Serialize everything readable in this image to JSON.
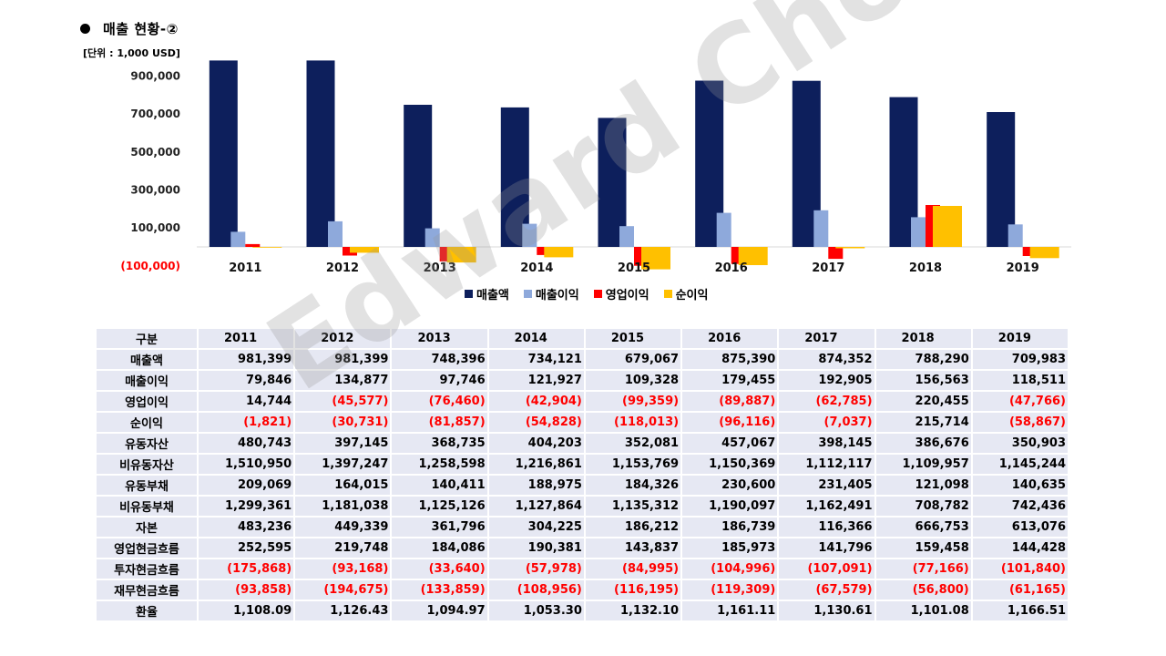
{
  "header": {
    "title": "매출 현황-②",
    "unit": "[단위 : 1,000 USD]"
  },
  "watermark": "Edward Choi",
  "colors": {
    "revenue": "#0d1f5c",
    "gross_profit": "#8ea9db",
    "operating_income": "#ff0000",
    "net_income": "#ffc000",
    "negative_text": "#ff0000",
    "table_bg": "#e6e8f3"
  },
  "chart_data": {
    "type": "bar",
    "categories": [
      "2011",
      "2012",
      "2013",
      "2014",
      "2015",
      "2016",
      "2017",
      "2018",
      "2019"
    ],
    "series": [
      {
        "name": "매출액",
        "color": "#0d1f5c",
        "values": [
          981399,
          981399,
          748396,
          734121,
          679067,
          875390,
          874352,
          788290,
          709983
        ]
      },
      {
        "name": "매출이익",
        "color": "#8ea9db",
        "values": [
          79846,
          134877,
          97746,
          121927,
          109328,
          179455,
          192905,
          156563,
          118511
        ]
      },
      {
        "name": "영업이익",
        "color": "#ff0000",
        "values": [
          14744,
          -45577,
          -76460,
          -42904,
          -99359,
          -89887,
          -62785,
          220455,
          -47766
        ]
      },
      {
        "name": "순이익",
        "color": "#ffc000",
        "values": [
          -1821,
          -30731,
          -81857,
          -54828,
          -118013,
          -96116,
          -7037,
          215714,
          -58867
        ]
      }
    ],
    "yticks": [
      "900,000",
      "700,000",
      "500,000",
      "300,000",
      "100,000",
      "(100,000)"
    ],
    "ytick_values": [
      900000,
      700000,
      500000,
      300000,
      100000,
      -100000
    ],
    "ylim": [
      -100000,
      1000000
    ],
    "legend_position": "bottom",
    "title": "",
    "xlabel": "",
    "ylabel": ""
  },
  "table": {
    "header_label": "구분",
    "years": [
      "2011",
      "2012",
      "2013",
      "2014",
      "2015",
      "2016",
      "2017",
      "2018",
      "2019"
    ],
    "rows": [
      {
        "label": "매출액",
        "values": [
          "981,399",
          "981,399",
          "748,396",
          "734,121",
          "679,067",
          "875,390",
          "874,352",
          "788,290",
          "709,983"
        ]
      },
      {
        "label": "매출이익",
        "values": [
          "79,846",
          "134,877",
          "97,746",
          "121,927",
          "109,328",
          "179,455",
          "192,905",
          "156,563",
          "118,511"
        ]
      },
      {
        "label": "영업이익",
        "values": [
          "14,744",
          "(45,577)",
          "(76,460)",
          "(42,904)",
          "(99,359)",
          "(89,887)",
          "(62,785)",
          "220,455",
          "(47,766)"
        ]
      },
      {
        "label": "순이익",
        "values": [
          "(1,821)",
          "(30,731)",
          "(81,857)",
          "(54,828)",
          "(118,013)",
          "(96,116)",
          "(7,037)",
          "215,714",
          "(58,867)"
        ]
      },
      {
        "label": "유동자산",
        "values": [
          "480,743",
          "397,145",
          "368,735",
          "404,203",
          "352,081",
          "457,067",
          "398,145",
          "386,676",
          "350,903"
        ]
      },
      {
        "label": "비유동자산",
        "values": [
          "1,510,950",
          "1,397,247",
          "1,258,598",
          "1,216,861",
          "1,153,769",
          "1,150,369",
          "1,112,117",
          "1,109,957",
          "1,145,244"
        ]
      },
      {
        "label": "유동부채",
        "values": [
          "209,069",
          "164,015",
          "140,411",
          "188,975",
          "184,326",
          "230,600",
          "231,405",
          "121,098",
          "140,635"
        ]
      },
      {
        "label": "비유동부채",
        "values": [
          "1,299,361",
          "1,181,038",
          "1,125,126",
          "1,127,864",
          "1,135,312",
          "1,190,097",
          "1,162,491",
          "708,782",
          "742,436"
        ]
      },
      {
        "label": "자본",
        "values": [
          "483,236",
          "449,339",
          "361,796",
          "304,225",
          "186,212",
          "186,739",
          "116,366",
          "666,753",
          "613,076"
        ]
      },
      {
        "label": "영업현금흐름",
        "values": [
          "252,595",
          "219,748",
          "184,086",
          "190,381",
          "143,837",
          "185,973",
          "141,796",
          "159,458",
          "144,428"
        ]
      },
      {
        "label": "투자현금흐름",
        "values": [
          "(175,868)",
          "(93,168)",
          "(33,640)",
          "(57,978)",
          "(84,995)",
          "(104,996)",
          "(107,091)",
          "(77,166)",
          "(101,840)"
        ]
      },
      {
        "label": "재무현금흐름",
        "values": [
          "(93,858)",
          "(194,675)",
          "(133,859)",
          "(108,956)",
          "(116,195)",
          "(119,309)",
          "(67,579)",
          "(56,800)",
          "(61,165)"
        ]
      },
      {
        "label": "환율",
        "values": [
          "1,108.09",
          "1,126.43",
          "1,094.97",
          "1,053.30",
          "1,132.10",
          "1,161.11",
          "1,130.61",
          "1,101.08",
          "1,166.51"
        ]
      }
    ]
  }
}
